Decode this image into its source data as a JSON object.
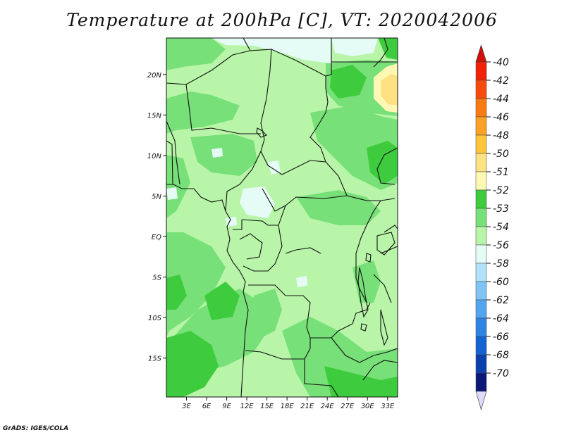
{
  "title": "Temperature at 200hPa [C], VT: 2020042006",
  "credit": "GrADS: IGES/COLA",
  "map": {
    "lon_ticks": [
      "3E",
      "6E",
      "9E",
      "12E",
      "15E",
      "18E",
      "21E",
      "24E",
      "27E",
      "30E",
      "33E"
    ],
    "lat_ticks": [
      "20N",
      "15N",
      "10N",
      "5N",
      "EQ",
      "5S",
      "10S",
      "15S"
    ],
    "lon_values": [
      3,
      6,
      9,
      12,
      15,
      18,
      21,
      24,
      27,
      30,
      33
    ],
    "lat_values": [
      20,
      15,
      10,
      5,
      0,
      -5,
      -10,
      -15
    ],
    "lon_range": [
      0,
      34.5
    ],
    "lat_range": [
      -19.8,
      24.5
    ]
  },
  "colorbar": {
    "labels": [
      "-40",
      "-42",
      "-44",
      "-46",
      "-48",
      "-50",
      "-51",
      "-52",
      "-53",
      "-54",
      "-56",
      "-58",
      "-60",
      "-62",
      "-64",
      "-66",
      "-68",
      "-70"
    ],
    "colors": [
      "#f0220a",
      "#f74a0c",
      "#fa7a12",
      "#faa225",
      "#fcc53c",
      "#fde182",
      "#fdf8b3",
      "#3ecb3e",
      "#78e078",
      "#b8f5a8",
      "#e4fbf6",
      "#b2e2fa",
      "#7fc4f5",
      "#53a5f0",
      "#2f84e3",
      "#1463d2",
      "#0a40ae",
      "#0a1878"
    ],
    "arrow_top_color": "#d2100a",
    "arrow_bottom_color": "#dddafa"
  },
  "field_colors": {
    "c51": "#b8f5a8",
    "c52": "#78e078",
    "c53": "#3ecb3e",
    "c54": "#e4fbf6",
    "c48": "#fde182",
    "c50": "#fdf8b3"
  }
}
